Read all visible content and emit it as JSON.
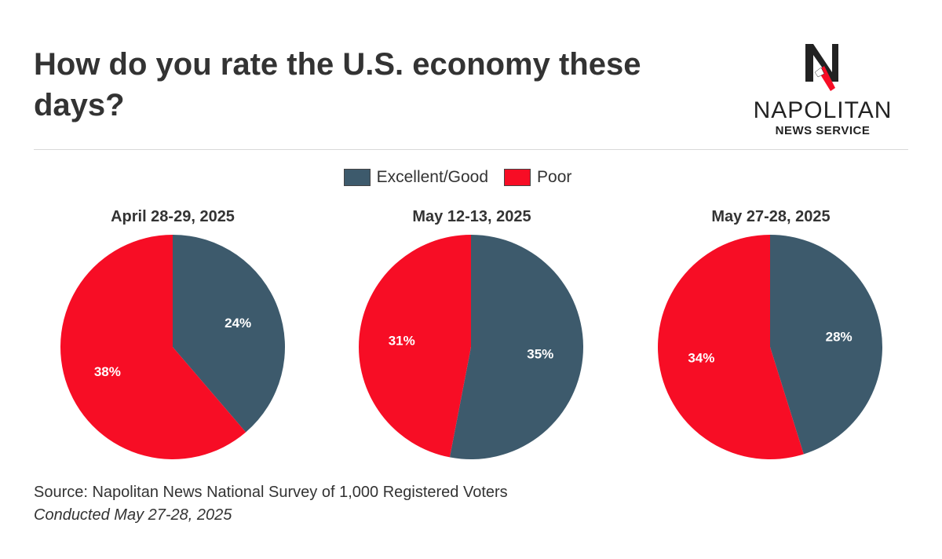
{
  "header": {
    "title": "How do you rate the U.S. economy these days?",
    "logo_name": "NAPOLITAN",
    "logo_sub": "NEWS SERVICE"
  },
  "colors": {
    "excellent_good": "#3d5a6c",
    "poor": "#f70d25",
    "text": "#333333"
  },
  "chart_data": [
    {
      "type": "pie",
      "title": "April 28-29, 2025",
      "legend_position": "top-center",
      "slices": [
        {
          "name": "Excellent/Good",
          "value": 24,
          "label": "24%"
        },
        {
          "name": "Poor",
          "value": 38,
          "label": "38%"
        }
      ]
    },
    {
      "type": "pie",
      "title": "May 12-13, 2025",
      "legend_position": "top-center",
      "slices": [
        {
          "name": "Excellent/Good",
          "value": 35,
          "label": "35%"
        },
        {
          "name": "Poor",
          "value": 31,
          "label": "31%"
        }
      ]
    },
    {
      "type": "pie",
      "title": "May 27-28, 2025",
      "legend_position": "top-center",
      "slices": [
        {
          "name": "Excellent/Good",
          "value": 28,
          "label": "28%"
        },
        {
          "name": "Poor",
          "value": 34,
          "label": "34%"
        }
      ]
    }
  ],
  "legend": {
    "items": [
      {
        "label": "Excellent/Good",
        "color": "#3d5a6c"
      },
      {
        "label": "Poor",
        "color": "#f70d25"
      }
    ]
  },
  "footer": {
    "source": "Source: Napolitan News National Survey of 1,000 Registered Voters",
    "conducted": "Conducted May 27-28, 2025"
  }
}
